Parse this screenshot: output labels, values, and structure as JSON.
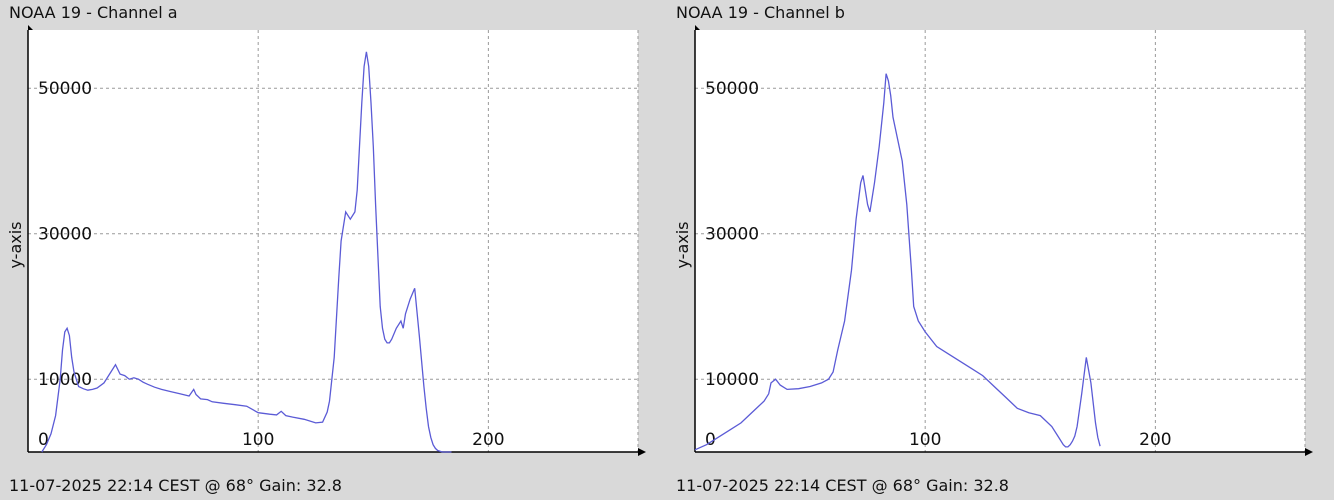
{
  "chart_data": [
    {
      "type": "line",
      "title": "NOAA 19 - Channel a",
      "subtitle": "11-07-2025 22:14 CEST @ 68° Gain: 32.8",
      "ylabel": "y-axis",
      "xlabel": "",
      "xlim": [
        0,
        265
      ],
      "ylim": [
        0,
        58000
      ],
      "x_ticks": [
        0,
        100,
        200
      ],
      "y_ticks": [
        10000,
        30000,
        50000
      ],
      "grid": true,
      "series": [
        {
          "color": "#5b5bd6",
          "x": [
            6,
            8,
            10,
            12,
            14,
            15,
            16,
            17,
            18,
            19,
            20,
            22,
            24,
            26,
            28,
            30,
            33,
            36,
            38,
            40,
            42,
            44,
            46,
            48,
            50,
            52,
            55,
            58,
            62,
            66,
            70,
            72,
            73,
            75,
            78,
            80,
            85,
            90,
            95,
            100,
            105,
            108,
            110,
            112,
            115,
            120,
            125,
            128,
            130,
            131,
            133,
            135,
            136,
            138,
            140,
            142,
            143,
            144,
            145,
            146,
            147,
            148,
            149,
            150,
            151,
            152,
            153,
            154,
            155,
            156,
            157,
            158,
            160,
            162,
            163,
            164,
            166,
            168,
            170,
            172,
            173,
            174,
            175,
            176,
            177,
            178,
            180,
            182,
            184
          ],
          "y": [
            0,
            1000,
            2500,
            5000,
            10000,
            14000,
            16500,
            17000,
            16000,
            13000,
            11000,
            9000,
            8700,
            8500,
            8600,
            8800,
            9500,
            11000,
            12000,
            10700,
            10500,
            10000,
            10200,
            10000,
            9600,
            9300,
            8900,
            8600,
            8300,
            8000,
            7700,
            8600,
            7900,
            7300,
            7200,
            6900,
            6700,
            6500,
            6300,
            5400,
            5200,
            5100,
            5600,
            5000,
            4800,
            4500,
            4000,
            4100,
            5500,
            7000,
            13000,
            24000,
            29000,
            33000,
            32000,
            33000,
            36000,
            42000,
            48000,
            53000,
            55000,
            53000,
            48000,
            42000,
            34000,
            27000,
            20000,
            17000,
            15500,
            15000,
            15000,
            15500,
            17000,
            18000,
            17000,
            19000,
            21000,
            22500,
            16000,
            9000,
            6000,
            3500,
            2000,
            1000,
            500,
            200,
            0,
            0,
            0
          ]
        }
      ]
    },
    {
      "type": "line",
      "title": "NOAA 19 - Channel b",
      "subtitle": "11-07-2025 22:14 CEST @ 68° Gain: 32.8",
      "ylabel": "y-axis",
      "xlabel": "",
      "xlim": [
        0,
        265
      ],
      "ylim": [
        0,
        58000
      ],
      "x_ticks": [
        0,
        100,
        200
      ],
      "y_ticks": [
        10000,
        30000,
        50000
      ],
      "grid": true,
      "series": [
        {
          "color": "#5b5bd6",
          "x": [
            0,
            5,
            10,
            15,
            20,
            25,
            30,
            32,
            33,
            35,
            37,
            40,
            45,
            50,
            55,
            58,
            60,
            62,
            65,
            68,
            70,
            72,
            73,
            75,
            76,
            78,
            80,
            82,
            83,
            84,
            85,
            86,
            88,
            90,
            92,
            94,
            95,
            97,
            100,
            105,
            110,
            115,
            120,
            125,
            130,
            135,
            140,
            145,
            150,
            155,
            158,
            160,
            161,
            162,
            163,
            164,
            165,
            166,
            168,
            170,
            172,
            174,
            175,
            176
          ],
          "y": [
            300,
            1000,
            2000,
            3000,
            4000,
            5500,
            7000,
            8000,
            9500,
            10000,
            9200,
            8600,
            8700,
            9000,
            9500,
            10000,
            11000,
            14000,
            18000,
            25000,
            32000,
            37000,
            38000,
            34000,
            33000,
            37000,
            42000,
            48000,
            52000,
            51000,
            49000,
            46000,
            43000,
            40000,
            34000,
            25000,
            20000,
            18000,
            16500,
            14500,
            13500,
            12500,
            11500,
            10500,
            9000,
            7500,
            6000,
            5400,
            5000,
            3500,
            2000,
            1000,
            700,
            700,
            1000,
            1500,
            2200,
            3500,
            8000,
            13000,
            9500,
            4000,
            2000,
            800
          ]
        }
      ]
    }
  ]
}
